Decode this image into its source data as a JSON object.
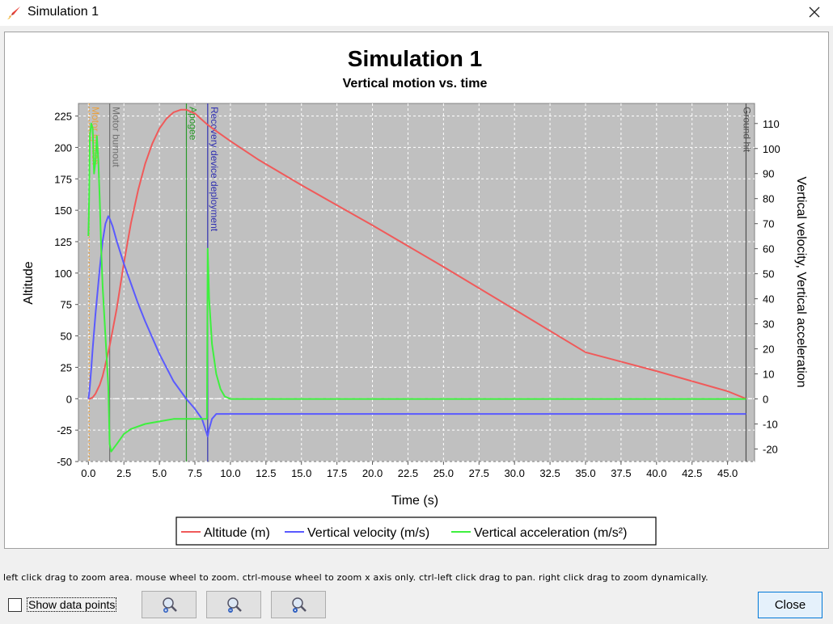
{
  "window": {
    "title": "Simulation 1",
    "icon": "rocket-icon",
    "close_icon": "close-icon"
  },
  "hint_text": "left click drag to zoom area. mouse wheel to zoom. ctrl-mouse wheel to zoom x axis only. ctrl-left click drag to pan. right click drag to zoom dynamically.",
  "controls": {
    "show_points_label": "Show data points",
    "show_points_checked": false,
    "zoom_in_icon": "zoom-in-icon",
    "zoom_out_icon": "zoom-out-icon",
    "zoom_reset_icon": "zoom-reset-icon",
    "close_label": "Close"
  },
  "colors": {
    "altitude": "#f05a5a",
    "velocity": "#5a5aff",
    "acceleration": "#3ef03e",
    "plot_bg": "#c0c0c0"
  },
  "chart_data": {
    "type": "line",
    "title": "Simulation 1",
    "subtitle": "Vertical motion vs. time",
    "xlabel": "Time (s)",
    "ylabel_left": "Altitude",
    "ylabel_right": "Vertical velocity, Vertical acceleration",
    "xlim": [
      -0.7,
      46.9
    ],
    "ylim_left": [
      -50,
      235
    ],
    "ylim_right": [
      -25,
      118
    ],
    "x_ticks": [
      "0.0",
      "2.5",
      "5.0",
      "7.5",
      "10.0",
      "12.5",
      "15.0",
      "17.5",
      "20.0",
      "22.5",
      "25.0",
      "27.5",
      "30.0",
      "32.5",
      "35.0",
      "37.5",
      "40.0",
      "42.5",
      "45.0"
    ],
    "y_ticks_left": [
      "225",
      "200",
      "175",
      "150",
      "125",
      "100",
      "75",
      "50",
      "25",
      "0",
      "-25",
      "-50"
    ],
    "y_ticks_right": [
      "110",
      "100",
      "90",
      "80",
      "70",
      "60",
      "50",
      "40",
      "30",
      "20",
      "10",
      "0",
      "-10",
      "-20"
    ],
    "grid": true,
    "legend_placement": "bottom",
    "events": [
      {
        "label": "Motor ignition",
        "t": 0.05,
        "color": "#e8a040",
        "style": "dotted"
      },
      {
        "label": "Motor burnout",
        "t": 1.5,
        "color": "#707070",
        "style": "solid"
      },
      {
        "label": "Apogee",
        "t": 6.9,
        "color": "#2a9a2a",
        "style": "solid"
      },
      {
        "label": "Recovery device deployment",
        "t": 8.4,
        "color": "#3030b0",
        "style": "solid"
      },
      {
        "label": "Ground hit",
        "t": 46.3,
        "color": "#505050",
        "style": "solid"
      }
    ],
    "series": [
      {
        "name": "Altitude (m)",
        "axis": "left",
        "x": [
          0,
          0.1,
          0.3,
          0.5,
          0.8,
          1.0,
          1.3,
          1.5,
          2.0,
          2.5,
          3.0,
          3.5,
          4.0,
          4.5,
          5.0,
          5.5,
          6.0,
          6.5,
          6.9,
          7.5,
          8.0,
          8.4,
          9.0,
          10.0,
          12.0,
          15.0,
          20.0,
          25.0,
          30.0,
          35.0,
          40.0,
          45.0,
          46.3
        ],
        "values": [
          0,
          0,
          1,
          4,
          11,
          18,
          32,
          42,
          72,
          108,
          140,
          166,
          187,
          203,
          215,
          223,
          228,
          230,
          230,
          227,
          222,
          218,
          213,
          205,
          190,
          170,
          138,
          105,
          71,
          37,
          22,
          6,
          0
        ]
      },
      {
        "name": "Vertical velocity (m/s)",
        "axis": "right",
        "x": [
          0,
          0.05,
          0.1,
          0.2,
          0.3,
          0.5,
          0.8,
          1.0,
          1.2,
          1.4,
          1.5,
          1.7,
          2.0,
          2.5,
          3.0,
          3.5,
          4.0,
          5.0,
          6.0,
          6.9,
          7.5,
          8.0,
          8.4,
          8.5,
          8.7,
          9.0,
          9.5,
          10.0,
          15.0,
          20.0,
          30.0,
          40.0,
          46.3
        ],
        "values": [
          0,
          2,
          5,
          12,
          20,
          34,
          52,
          63,
          70,
          73,
          72,
          69,
          63,
          54,
          46,
          38,
          31,
          18,
          7,
          0,
          -4,
          -8,
          -15,
          -12,
          -8,
          -6,
          -6,
          -6,
          -6,
          -6,
          -6,
          -6,
          -6
        ]
      },
      {
        "name": "Vertical acceleration (m/s²)",
        "axis": "right",
        "x": [
          0,
          0.05,
          0.1,
          0.2,
          0.3,
          0.4,
          0.5,
          0.6,
          0.7,
          0.8,
          0.9,
          1.0,
          1.2,
          1.4,
          1.5,
          1.6,
          2.0,
          2.5,
          3.0,
          4.0,
          5.0,
          6.0,
          7.0,
          8.0,
          8.35,
          8.4,
          8.5,
          8.7,
          9.0,
          9.3,
          9.6,
          10.0,
          20.0,
          46.3
        ],
        "values": [
          65,
          80,
          105,
          110,
          108,
          90,
          95,
          105,
          95,
          80,
          60,
          45,
          25,
          5,
          -18,
          -21,
          -18,
          -14,
          -12,
          -10,
          -9,
          -8,
          -8,
          -8,
          -8,
          60,
          40,
          22,
          10,
          4,
          1,
          0,
          0,
          0
        ]
      }
    ]
  }
}
